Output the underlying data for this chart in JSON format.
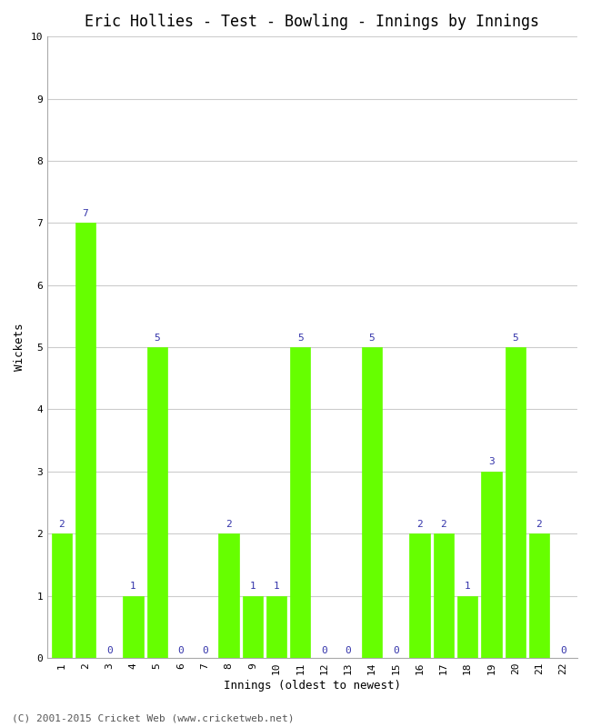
{
  "title": "Eric Hollies - Test - Bowling - Innings by Innings",
  "xlabel": "Innings (oldest to newest)",
  "ylabel": "Wickets",
  "bar_color": "#66ff00",
  "bar_edge_color": "#66ff00",
  "label_color": "#3333aa",
  "background_color": "#ffffff",
  "grid_color": "#cccccc",
  "categories": [
    "1",
    "2",
    "3",
    "4",
    "5",
    "6",
    "7",
    "8",
    "9",
    "10",
    "11",
    "12",
    "13",
    "14",
    "15",
    "16",
    "17",
    "18",
    "19",
    "20",
    "21",
    "22"
  ],
  "values": [
    2,
    7,
    0,
    1,
    5,
    0,
    0,
    2,
    1,
    1,
    5,
    0,
    0,
    5,
    0,
    2,
    2,
    1,
    3,
    5,
    2,
    0
  ],
  "ylim": [
    0,
    10
  ],
  "yticks": [
    0,
    1,
    2,
    3,
    4,
    5,
    6,
    7,
    8,
    9,
    10
  ],
  "footer_text": "(C) 2001-2015 Cricket Web (www.cricketweb.net)",
  "title_fontsize": 12,
  "axis_label_fontsize": 9,
  "tick_fontsize": 8,
  "bar_label_fontsize": 8,
  "footer_fontsize": 8
}
